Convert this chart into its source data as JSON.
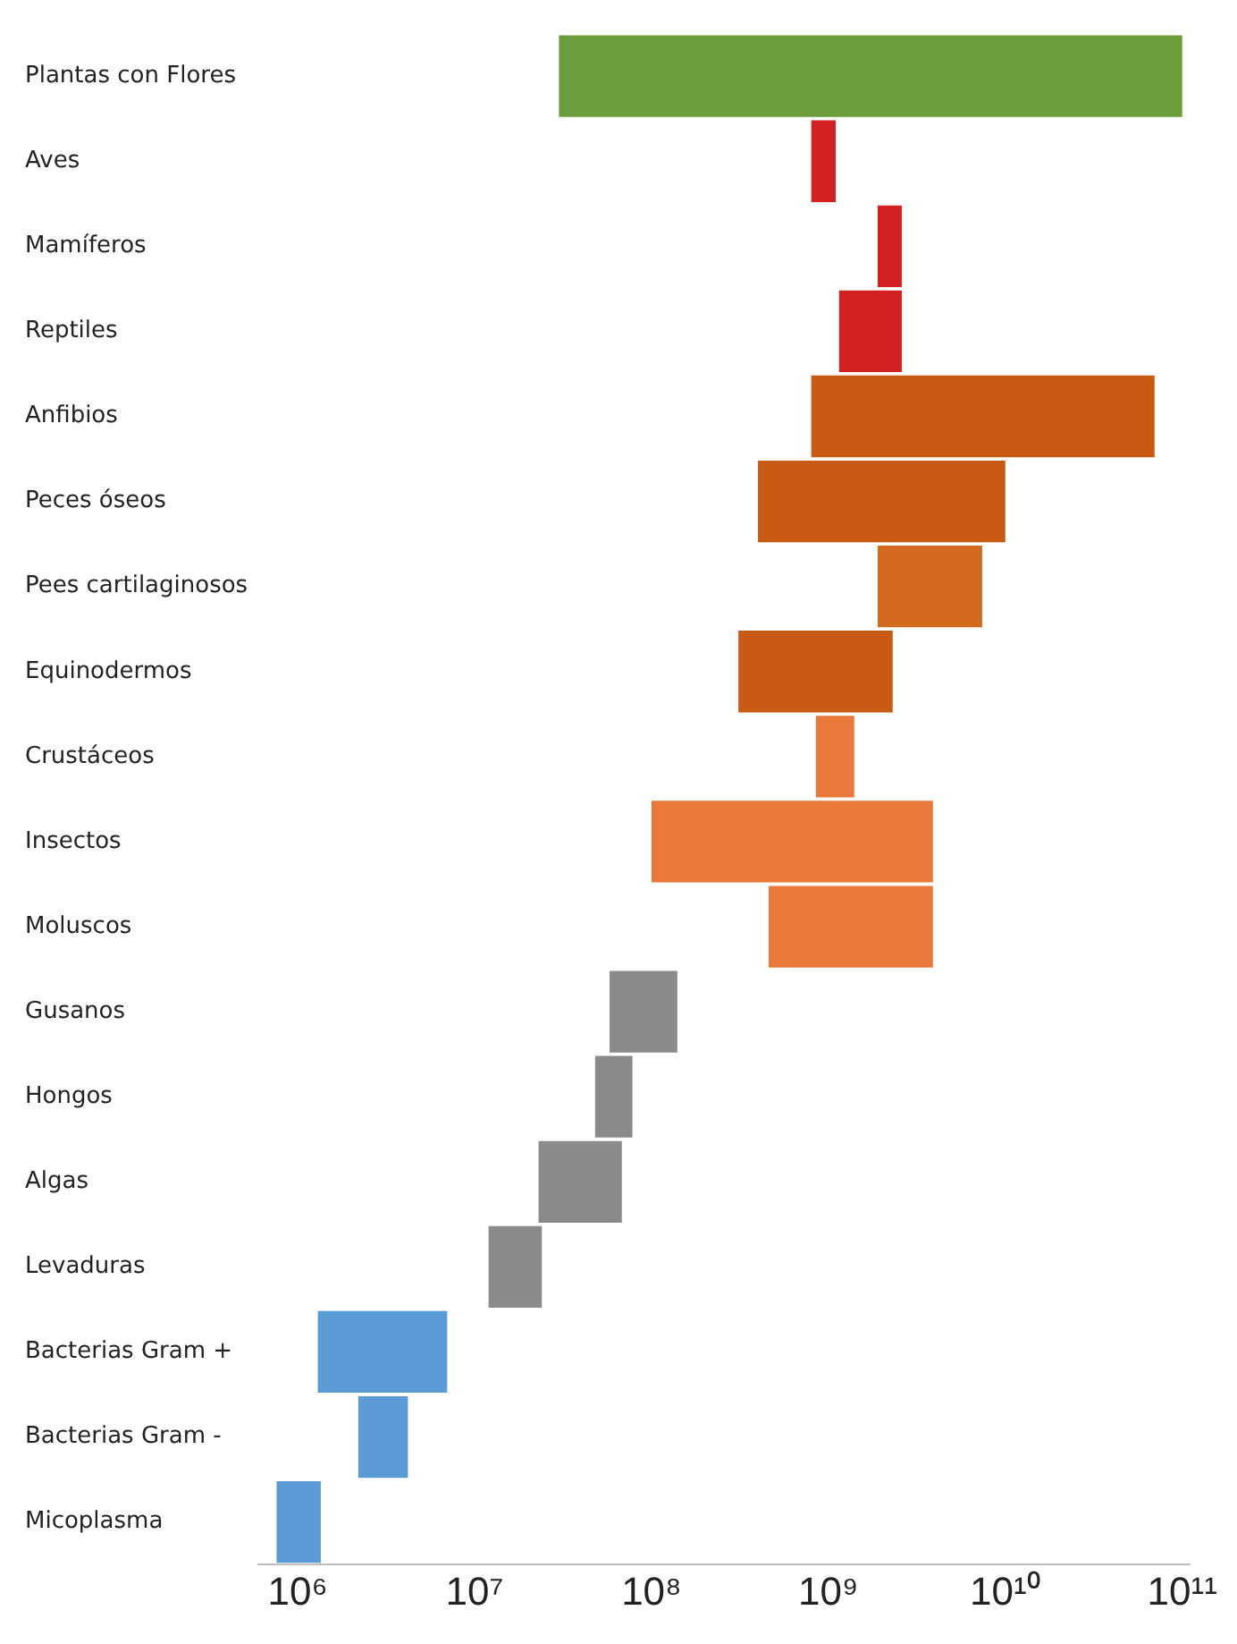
{
  "chart_data": {
    "type": "bar",
    "orientation": "horizontal",
    "log": "x",
    "grid": false,
    "legend": false,
    "categories": [
      "Plantas con Flores",
      "Aves",
      "Mamíferos",
      "Reptiles",
      "Anfibios",
      "Peces óseos",
      "Pees cartilaginosos",
      "Equinodermos",
      "Crustáceos",
      "Insectos",
      "Moluscos",
      "Gusanos",
      "Hongos",
      "Algas",
      "Levaduras",
      "Bacterias Gram +",
      "Bacterias Gram -",
      "Micoplasma"
    ],
    "base": [
      30000000.0,
      800000000.0,
      1900000000.0,
      1150000000.0,
      800000000.0,
      400000000.0,
      1900000000.0,
      310000000.0,
      850000000.0,
      100000000.0,
      460000000.0,
      58000000.0,
      48000000.0,
      23000000.0,
      12000000.0,
      1300000.0,
      2200000.0,
      760000.0
    ],
    "values": [
      100000000000.0,
      300000000.0,
      700000000.0,
      1450000000.0,
      69000000000.0,
      9600000000.0,
      5500000000.0,
      2000000000.0,
      550000000.0,
      3800000000.0,
      3440000000.0,
      82000000.0,
      30000000.0,
      45000000.0,
      12000000.0,
      5700000.0,
      2000000.0,
      590000.0
    ],
    "colors": [
      "#6a9e3a",
      "#d42020",
      "#d42020",
      "#d42020",
      "#c85a14",
      "#c85a14",
      "#d2691e",
      "#c85a14",
      "#e8793a",
      "#e8793a",
      "#e8793a",
      "#8a8a8a",
      "#8a8a8a",
      "#8a8a8a",
      "#8a8a8a",
      "#5b9bd5",
      "#5b9bd5",
      "#5b9bd5"
    ],
    "xlim": [
      600000.0,
      110000000000.0
    ],
    "xticks": [
      {
        "value": 1000000.0,
        "label": "10⁶"
      },
      {
        "value": 10000000.0,
        "label": "10⁷"
      },
      {
        "value": 100000000.0,
        "label": "10⁸"
      },
      {
        "value": 1000000000.0,
        "label": "10⁹"
      },
      {
        "value": 10000000000.0,
        "label": "10¹⁰"
      },
      {
        "value": 100000000000.0,
        "label": "10¹¹"
      }
    ]
  }
}
